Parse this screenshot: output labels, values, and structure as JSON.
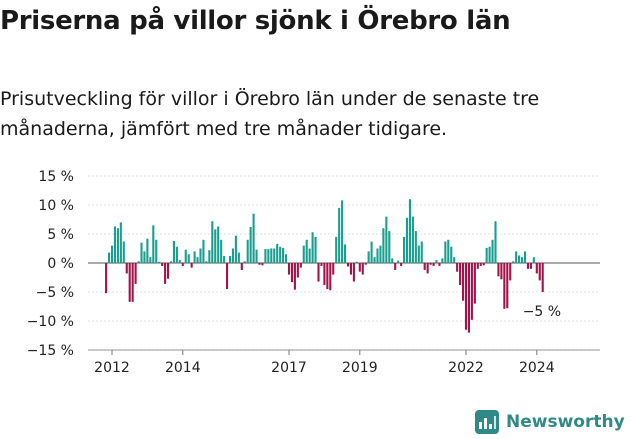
{
  "title": "Priserna på villor sjönk i Örebro län",
  "subtitle": "Prisutveckling för villor i Örebro län under de senaste tre månaderna, jämfört med tre månader tidigare.",
  "brand": "Newsworthy",
  "colors": {
    "positive": "#1a9e8f",
    "negative": "#a3124a",
    "brand": "#2f8a87"
  },
  "chart_data": {
    "type": "bar",
    "title": "",
    "xlabel": "",
    "ylabel": "",
    "ylim": [
      -15,
      15
    ],
    "yticks": [
      15,
      10,
      5,
      0,
      -5,
      -10,
      -15
    ],
    "ytick_labels": [
      "15 %",
      "10 %",
      "5 %",
      "0 %",
      "−5 %",
      "−10 %",
      "−15 %"
    ],
    "xtick_labels": [
      "2012",
      "2014",
      "2017",
      "2019",
      "2022",
      "2024"
    ],
    "xtick_years": [
      2012,
      2014,
      2017,
      2019,
      2022,
      2024
    ],
    "start": "2011-11",
    "unit": "%",
    "annotation": "−5 %",
    "values": [
      -5.2,
      1.8,
      3.0,
      6.3,
      6.0,
      7.0,
      3.7,
      -1.8,
      -6.7,
      -6.7,
      -3.6,
      0.3,
      3.5,
      2.0,
      4.2,
      1.0,
      6.5,
      4.0,
      0.2,
      -0.5,
      -3.6,
      -2.7,
      0.3,
      3.8,
      2.8,
      0.5,
      -0.5,
      2.3,
      1.5,
      -0.8,
      2.0,
      1.0,
      2.5,
      4.0,
      0.3,
      2.2,
      7.2,
      5.8,
      6.3,
      4.0,
      1.2,
      -4.5,
      1.2,
      2.5,
      4.7,
      1.8,
      -1.2,
      0.3,
      4.0,
      6.2,
      8.5,
      2.3,
      -0.3,
      -0.4,
      2.4,
      2.4,
      2.5,
      2.5,
      3.3,
      2.8,
      2.6,
      1.5,
      -2.0,
      -3.3,
      -4.6,
      -2.5,
      -0.8,
      3.0,
      4.0,
      2.5,
      5.3,
      4.5,
      -3.2,
      -0.5,
      -3.8,
      -4.5,
      -4.7,
      -2.0,
      4.5,
      9.5,
      10.8,
      3.2,
      -0.6,
      -2.0,
      -3.2,
      0.2,
      -1.5,
      -2.0,
      -0.3,
      2.0,
      3.7,
      1.0,
      2.5,
      3.0,
      6.0,
      8.0,
      5.5,
      0.8,
      -1.2,
      0.4,
      -0.5,
      4.5,
      7.8,
      11.0,
      8.0,
      5.5,
      3.0,
      3.7,
      -1.2,
      -1.8,
      -0.3,
      -0.5,
      0.5,
      -0.5,
      0.8,
      3.7,
      4.0,
      2.8,
      1.0,
      -1.5,
      -3.8,
      -6.5,
      -11.5,
      -12.0,
      -9.8,
      -7.0,
      -1.0,
      -0.5,
      -0.4,
      2.6,
      2.8,
      4.0,
      7.2,
      -2.3,
      -2.8,
      -7.9,
      -7.8,
      -3.0,
      0.3,
      2.0,
      1.3,
      1.0,
      2.0,
      -1.0,
      -1.0,
      1.0,
      -1.8,
      -3.0,
      -5.0
    ]
  }
}
